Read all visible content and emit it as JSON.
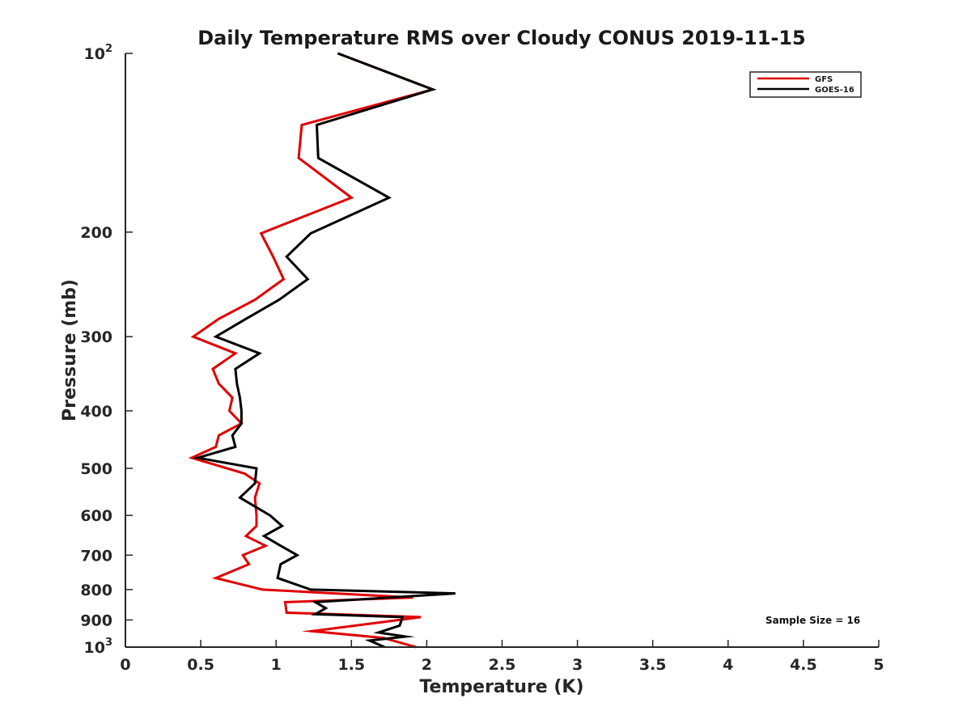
{
  "chart_data": {
    "type": "line",
    "title": "Daily Temperature RMS over Cloudy CONUS 2019-11-15",
    "xlabel": "Temperature (K)",
    "ylabel": "Pressure (mb)",
    "xlim": [
      0,
      5
    ],
    "ylim": [
      100,
      1000
    ],
    "y_scale": "log",
    "y_reversed": true,
    "grid": false,
    "legend_position": "top-right",
    "x_ticks": [
      "0",
      "0.5",
      "1",
      "1.5",
      "2",
      "2.5",
      "3",
      "3.5",
      "4",
      "4.5",
      "5"
    ],
    "y_ticks": [
      {
        "value": 100,
        "base": "10",
        "exp": "2"
      },
      {
        "value": 200,
        "label": "200"
      },
      {
        "value": 300,
        "label": "300"
      },
      {
        "value": 400,
        "label": "400"
      },
      {
        "value": 500,
        "label": "500"
      },
      {
        "value": 600,
        "label": "600"
      },
      {
        "value": 700,
        "label": "700"
      },
      {
        "value": 800,
        "label": "800"
      },
      {
        "value": 900,
        "label": "900"
      },
      {
        "value": 1000,
        "base": "10",
        "exp": "3"
      }
    ],
    "series": [
      {
        "name": "GFS",
        "color": "#e00000",
        "points": [
          [
            1.41,
            100
          ],
          [
            2.04,
            115
          ],
          [
            1.17,
            132
          ],
          [
            1.15,
            150
          ],
          [
            1.5,
            175
          ],
          [
            0.9,
            201
          ],
          [
            0.98,
            220
          ],
          [
            1.05,
            240
          ],
          [
            0.86,
            260
          ],
          [
            0.62,
            280
          ],
          [
            0.45,
            300
          ],
          [
            0.73,
            320
          ],
          [
            0.58,
            340
          ],
          [
            0.62,
            360
          ],
          [
            0.71,
            380
          ],
          [
            0.69,
            400
          ],
          [
            0.77,
            420
          ],
          [
            0.62,
            440
          ],
          [
            0.6,
            460
          ],
          [
            0.44,
            480
          ],
          [
            0.79,
            510
          ],
          [
            0.89,
            530
          ],
          [
            0.86,
            560
          ],
          [
            0.87,
            600
          ],
          [
            0.87,
            625
          ],
          [
            0.8,
            650
          ],
          [
            0.93,
            675
          ],
          [
            0.78,
            700
          ],
          [
            0.82,
            725
          ],
          [
            0.6,
            765
          ],
          [
            0.91,
            800
          ],
          [
            1.91,
            825
          ],
          [
            1.06,
            840
          ],
          [
            1.07,
            875
          ],
          [
            1.96,
            890
          ],
          [
            1.24,
            940
          ],
          [
            1.71,
            965
          ],
          [
            1.93,
            1000
          ]
        ]
      },
      {
        "name": "GOES-16",
        "color": "#000000",
        "points": [
          [
            1.41,
            100
          ],
          [
            2.04,
            115
          ],
          [
            1.27,
            132
          ],
          [
            1.28,
            150
          ],
          [
            1.75,
            175
          ],
          [
            1.23,
            201
          ],
          [
            1.07,
            220
          ],
          [
            1.21,
            240
          ],
          [
            1.02,
            260
          ],
          [
            0.8,
            280
          ],
          [
            0.6,
            300
          ],
          [
            0.89,
            320
          ],
          [
            0.73,
            340
          ],
          [
            0.74,
            360
          ],
          [
            0.76,
            380
          ],
          [
            0.77,
            400
          ],
          [
            0.77,
            420
          ],
          [
            0.71,
            440
          ],
          [
            0.73,
            460
          ],
          [
            0.48,
            480
          ],
          [
            0.87,
            500
          ],
          [
            0.86,
            530
          ],
          [
            0.76,
            560
          ],
          [
            0.96,
            600
          ],
          [
            1.04,
            625
          ],
          [
            0.92,
            650
          ],
          [
            1.03,
            675
          ],
          [
            1.14,
            700
          ],
          [
            1.03,
            725
          ],
          [
            1.01,
            765
          ],
          [
            1.23,
            800
          ],
          [
            2.19,
            812
          ],
          [
            1.26,
            840
          ],
          [
            1.33,
            860
          ],
          [
            1.26,
            880
          ],
          [
            1.84,
            890
          ],
          [
            1.82,
            920
          ],
          [
            1.68,
            945
          ],
          [
            1.86,
            960
          ],
          [
            1.62,
            975
          ],
          [
            1.72,
            1000
          ]
        ]
      }
    ],
    "annotation": "Sample Size = 16"
  }
}
